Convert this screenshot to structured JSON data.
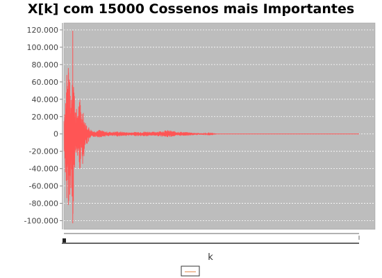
{
  "chart_data": {
    "type": "line",
    "title": "X[k] com 15000 Cossenos mais Importantes",
    "xlabel": "k",
    "ylabel": "",
    "ylim": [
      -110000,
      128000
    ],
    "yticks": [
      "120.000",
      "100.000",
      "80.000",
      "60.000",
      "40.000",
      "20.000",
      "0",
      "-20.000",
      "-40.000",
      "-60.000",
      "-80.000",
      "-100.000"
    ],
    "ytick_values": [
      120000,
      100000,
      80000,
      60000,
      40000,
      20000,
      0,
      -20000,
      -40000,
      -60000,
      -80000,
      -100000
    ],
    "x_range": [
      0,
      100
    ],
    "grid": true,
    "legend": "bottom-center",
    "series": [
      {
        "color": "#ff5555",
        "envelope": [
          {
            "x": 0,
            "max": 22000,
            "min": -25000
          },
          {
            "x": 0.5,
            "max": 45000,
            "min": -48000
          },
          {
            "x": 1,
            "max": 68000,
            "min": -74000
          },
          {
            "x": 1.5,
            "max": 76000,
            "min": -82000
          },
          {
            "x": 2,
            "max": 60000,
            "min": -70000
          },
          {
            "x": 2.5,
            "max": 45000,
            "min": -60000
          },
          {
            "x": 3,
            "max": 119000,
            "min": -103000
          },
          {
            "x": 3.5,
            "max": 55000,
            "min": -58000
          },
          {
            "x": 4,
            "max": 32000,
            "min": -30000
          },
          {
            "x": 4.5,
            "max": 28000,
            "min": -25000
          },
          {
            "x": 5,
            "max": 38000,
            "min": -35000
          },
          {
            "x": 5.5,
            "max": 42000,
            "min": -43000
          },
          {
            "x": 6,
            "max": 26000,
            "min": -24000
          },
          {
            "x": 6.5,
            "max": 36000,
            "min": -40000
          },
          {
            "x": 7,
            "max": 15000,
            "min": -15000
          },
          {
            "x": 8,
            "max": 10000,
            "min": -12000
          },
          {
            "x": 9,
            "max": 6000,
            "min": -6000
          },
          {
            "x": 10,
            "max": 3500,
            "min": -3500
          },
          {
            "x": 12,
            "max": 5000,
            "min": -4000
          },
          {
            "x": 14,
            "max": 3000,
            "min": -3000
          },
          {
            "x": 16,
            "max": 2500,
            "min": -2500
          },
          {
            "x": 18,
            "max": 3000,
            "min": -3000
          },
          {
            "x": 20,
            "max": 2500,
            "min": -2500
          },
          {
            "x": 22,
            "max": 2000,
            "min": -2000
          },
          {
            "x": 25,
            "max": 2500,
            "min": -2500
          },
          {
            "x": 28,
            "max": 3000,
            "min": -3000
          },
          {
            "x": 30,
            "max": 2500,
            "min": -2000
          },
          {
            "x": 33,
            "max": 3500,
            "min": -3000
          },
          {
            "x": 35,
            "max": 4500,
            "min": -4000
          },
          {
            "x": 38,
            "max": 3000,
            "min": -2500
          },
          {
            "x": 42,
            "max": 2000,
            "min": -2000
          },
          {
            "x": 46,
            "max": 1000,
            "min": -1000
          },
          {
            "x": 50,
            "max": 500,
            "min": -500
          },
          {
            "x": 52,
            "max": 0,
            "min": 0
          },
          {
            "x": 100,
            "max": 0,
            "min": 0
          }
        ]
      }
    ]
  }
}
